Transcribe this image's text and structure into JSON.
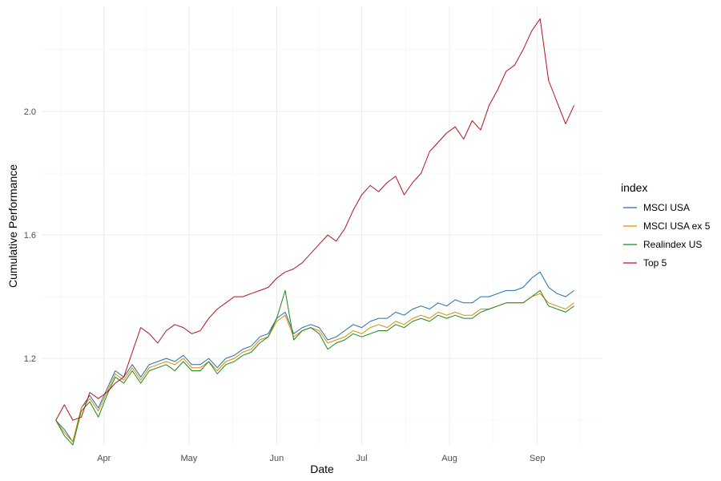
{
  "chart_data": {
    "type": "line",
    "title": "",
    "xlabel": "Date",
    "ylabel": "Cumulative Performance",
    "x_tick_labels": [
      "Apr",
      "May",
      "Jun",
      "Jul",
      "Aug",
      "Sep"
    ],
    "x_ticks": [
      "2023-04-01",
      "2023-05-01",
      "2023-06-01",
      "2023-07-01",
      "2023-08-01",
      "2023-09-01"
    ],
    "y_tick_labels": [
      "1.2",
      "1.6",
      "2.0"
    ],
    "y_ticks": [
      1.2,
      1.6,
      2.0
    ],
    "xlim": [
      "2023-03-10",
      "2023-09-24"
    ],
    "ylim": [
      0.92,
      2.34
    ],
    "grid": true,
    "legend_title": "index",
    "legend_position": "right",
    "dates": [
      "2023-03-15",
      "2023-03-18",
      "2023-03-21",
      "2023-03-24",
      "2023-03-27",
      "2023-03-30",
      "2023-04-02",
      "2023-04-05",
      "2023-04-08",
      "2023-04-11",
      "2023-04-14",
      "2023-04-17",
      "2023-04-20",
      "2023-04-23",
      "2023-04-26",
      "2023-04-29",
      "2023-05-02",
      "2023-05-05",
      "2023-05-08",
      "2023-05-11",
      "2023-05-14",
      "2023-05-17",
      "2023-05-20",
      "2023-05-23",
      "2023-05-26",
      "2023-05-29",
      "2023-06-01",
      "2023-06-04",
      "2023-06-07",
      "2023-06-10",
      "2023-06-13",
      "2023-06-16",
      "2023-06-19",
      "2023-06-22",
      "2023-06-25",
      "2023-06-28",
      "2023-07-01",
      "2023-07-04",
      "2023-07-07",
      "2023-07-10",
      "2023-07-13",
      "2023-07-16",
      "2023-07-19",
      "2023-07-22",
      "2023-07-25",
      "2023-07-28",
      "2023-07-31",
      "2023-08-03",
      "2023-08-06",
      "2023-08-09",
      "2023-08-12",
      "2023-08-15",
      "2023-08-18",
      "2023-08-21",
      "2023-08-24",
      "2023-08-27",
      "2023-08-30",
      "2023-09-02",
      "2023-09-05",
      "2023-09-08",
      "2023-09-11",
      "2023-09-14"
    ],
    "series": [
      {
        "name": "MSCI USA",
        "color": "#1f6fb2",
        "values": [
          1.0,
          0.97,
          0.93,
          1.04,
          1.08,
          1.04,
          1.1,
          1.16,
          1.14,
          1.18,
          1.14,
          1.18,
          1.19,
          1.2,
          1.19,
          1.21,
          1.18,
          1.18,
          1.2,
          1.17,
          1.2,
          1.21,
          1.23,
          1.24,
          1.27,
          1.28,
          1.33,
          1.35,
          1.28,
          1.3,
          1.31,
          1.3,
          1.26,
          1.27,
          1.29,
          1.31,
          1.3,
          1.32,
          1.33,
          1.33,
          1.35,
          1.34,
          1.36,
          1.37,
          1.36,
          1.38,
          1.37,
          1.39,
          1.38,
          1.38,
          1.4,
          1.4,
          1.41,
          1.42,
          1.42,
          1.43,
          1.46,
          1.48,
          1.43,
          1.41,
          1.4,
          1.42
        ]
      },
      {
        "name": "MSCI USA ex 5",
        "color": "#e08a00",
        "values": [
          1.0,
          0.96,
          0.93,
          1.04,
          1.07,
          1.03,
          1.09,
          1.15,
          1.13,
          1.17,
          1.13,
          1.17,
          1.18,
          1.19,
          1.18,
          1.2,
          1.17,
          1.17,
          1.19,
          1.16,
          1.19,
          1.2,
          1.22,
          1.23,
          1.26,
          1.27,
          1.32,
          1.34,
          1.27,
          1.29,
          1.3,
          1.29,
          1.25,
          1.26,
          1.27,
          1.29,
          1.28,
          1.3,
          1.31,
          1.3,
          1.32,
          1.31,
          1.33,
          1.34,
          1.33,
          1.35,
          1.34,
          1.35,
          1.34,
          1.34,
          1.36,
          1.36,
          1.37,
          1.38,
          1.38,
          1.38,
          1.4,
          1.41,
          1.38,
          1.37,
          1.36,
          1.38
        ]
      },
      {
        "name": "Realindex US",
        "color": "#1a8a1a",
        "values": [
          1.0,
          0.95,
          0.92,
          1.03,
          1.06,
          1.01,
          1.08,
          1.14,
          1.12,
          1.16,
          1.12,
          1.16,
          1.17,
          1.18,
          1.16,
          1.19,
          1.16,
          1.16,
          1.19,
          1.15,
          1.18,
          1.19,
          1.21,
          1.22,
          1.25,
          1.27,
          1.33,
          1.42,
          1.26,
          1.29,
          1.3,
          1.28,
          1.23,
          1.25,
          1.26,
          1.28,
          1.27,
          1.28,
          1.29,
          1.29,
          1.31,
          1.3,
          1.32,
          1.33,
          1.32,
          1.34,
          1.33,
          1.34,
          1.33,
          1.33,
          1.35,
          1.36,
          1.37,
          1.38,
          1.38,
          1.38,
          1.4,
          1.42,
          1.37,
          1.36,
          1.35,
          1.37
        ]
      },
      {
        "name": "Top 5",
        "color": "#b3141d",
        "values": [
          1.0,
          1.05,
          1.0,
          1.01,
          1.09,
          1.07,
          1.09,
          1.12,
          1.14,
          1.22,
          1.3,
          1.28,
          1.25,
          1.29,
          1.31,
          1.3,
          1.28,
          1.29,
          1.33,
          1.36,
          1.38,
          1.4,
          1.4,
          1.41,
          1.42,
          1.43,
          1.46,
          1.48,
          1.49,
          1.51,
          1.54,
          1.57,
          1.6,
          1.58,
          1.62,
          1.68,
          1.73,
          1.76,
          1.74,
          1.77,
          1.79,
          1.73,
          1.77,
          1.8,
          1.87,
          1.9,
          1.93,
          1.95,
          1.91,
          1.97,
          1.94,
          2.02,
          2.07,
          2.13,
          2.15,
          2.2,
          2.26,
          2.3,
          2.1,
          2.03,
          1.96,
          2.02
        ]
      }
    ]
  }
}
